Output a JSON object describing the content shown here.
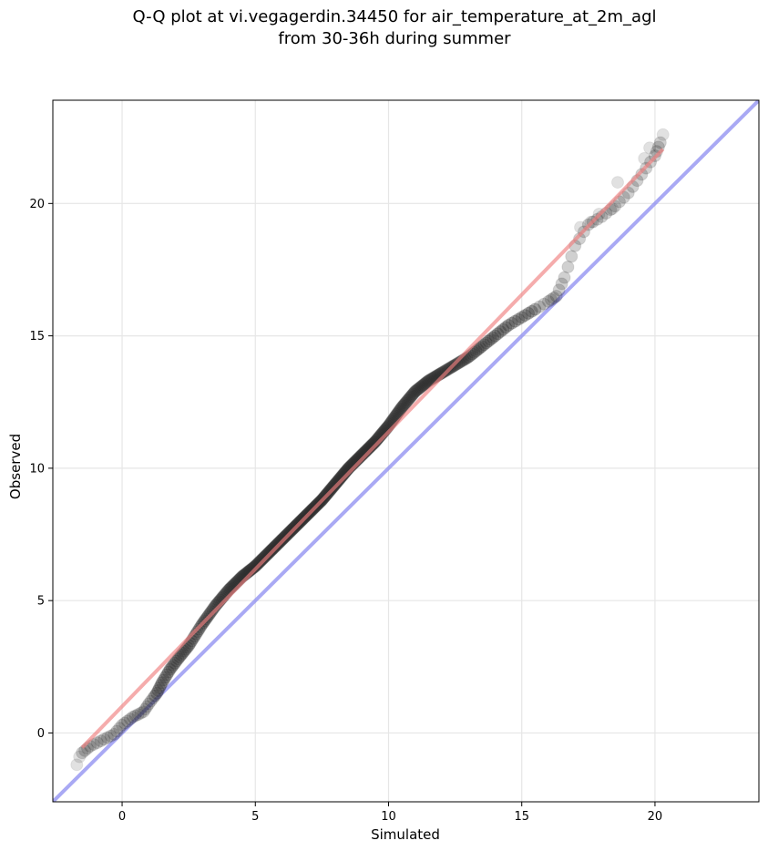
{
  "chart_data": {
    "type": "scatter",
    "title_line1": "Q-Q plot at vi.vegagerdin.34450 for air_temperature_at_2m_agl",
    "title_line2": "from 30-36h during summer",
    "xlabel": "Simulated",
    "ylabel": "Observed",
    "xlim": [
      -2.6,
      23.9
    ],
    "ylim": [
      -2.6,
      23.9
    ],
    "xticks": [
      0,
      5,
      10,
      15,
      20
    ],
    "yticks": [
      0,
      5,
      10,
      15,
      20
    ],
    "grid": true,
    "colors": {
      "points": "#2b2b2b",
      "fit_line": "#f08080",
      "identity_line": "#8c8cf0",
      "grid": "#e6e6e6"
    },
    "fit_line": {
      "x": [
        -1.5,
        20.3
      ],
      "y": [
        -0.55,
        22.05
      ]
    },
    "identity_line": {
      "x": [
        -2.6,
        23.9
      ],
      "y": [
        -2.6,
        23.9
      ]
    },
    "quantile_curve": {
      "x": [
        -1.5,
        -1.2,
        -0.8,
        -0.3,
        0.0,
        0.4,
        0.8,
        1.0,
        1.3,
        1.5,
        1.8,
        2.1,
        2.5,
        3.0,
        3.5,
        4.0,
        4.5,
        5.0,
        5.5,
        6.0,
        6.5,
        7.0,
        7.5,
        8.0,
        8.5,
        9.0,
        9.5,
        10.0,
        10.5,
        11.0,
        11.5,
        12.0,
        12.5,
        13.0,
        13.5,
        14.0,
        14.5,
        15.0,
        15.5,
        16.0,
        16.3,
        16.6,
        17.0,
        17.5,
        18.0,
        18.5,
        19.0,
        19.5,
        20.0,
        20.2
      ],
      "y": [
        -0.75,
        -0.5,
        -0.3,
        -0.05,
        0.3,
        0.6,
        0.8,
        1.1,
        1.5,
        1.9,
        2.4,
        2.8,
        3.3,
        4.1,
        4.8,
        5.4,
        5.9,
        6.3,
        6.8,
        7.3,
        7.8,
        8.3,
        8.8,
        9.4,
        10.0,
        10.5,
        11.0,
        11.6,
        12.3,
        12.9,
        13.3,
        13.6,
        13.9,
        14.2,
        14.6,
        15.0,
        15.4,
        15.7,
        16.0,
        16.3,
        16.5,
        17.2,
        18.4,
        19.2,
        19.5,
        19.9,
        20.4,
        21.1,
        21.8,
        22.3
      ]
    },
    "low_density_points": {
      "x": [
        -1.7,
        -1.6,
        20.3,
        19.8,
        19.6,
        18.6,
        18.4,
        17.9,
        17.6,
        17.2
      ],
      "y": [
        -1.2,
        -0.9,
        22.6,
        22.1,
        21.7,
        20.8,
        19.8,
        19.6,
        19.3,
        19.1
      ]
    }
  }
}
